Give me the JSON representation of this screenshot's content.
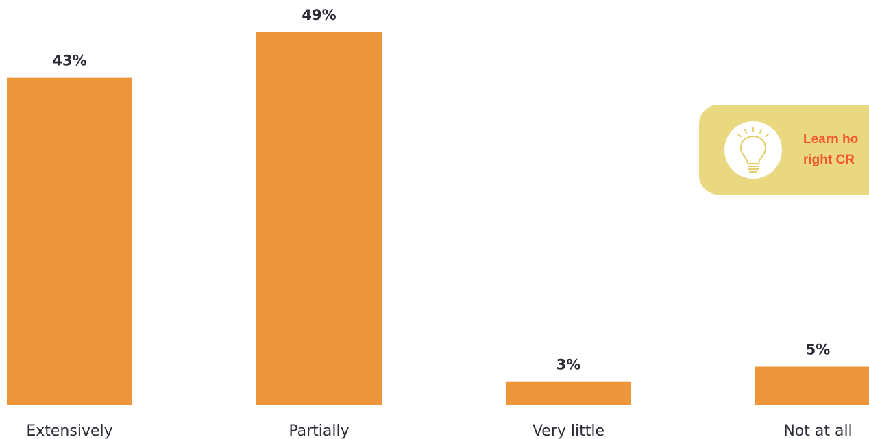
{
  "chart_data": {
    "type": "bar",
    "categories": [
      "Extensively",
      "Partially",
      "Very little",
      "Not at all"
    ],
    "values": [
      43,
      49,
      3,
      5
    ],
    "data_labels": [
      "43%",
      "49%",
      "3%",
      "5%"
    ],
    "title": "",
    "xlabel": "",
    "ylabel": "",
    "ylim": [
      0,
      49
    ],
    "grid": false,
    "legend": "none",
    "bar_color": "#EC953A",
    "text_color": "#2B2B36"
  },
  "callout": {
    "icon": "lightbulb-icon",
    "line1": "Learn ho",
    "line2": "right CR",
    "background_color": "#EAD881",
    "text_color": "#F2582C",
    "icon_color": "#E6CF6E"
  }
}
